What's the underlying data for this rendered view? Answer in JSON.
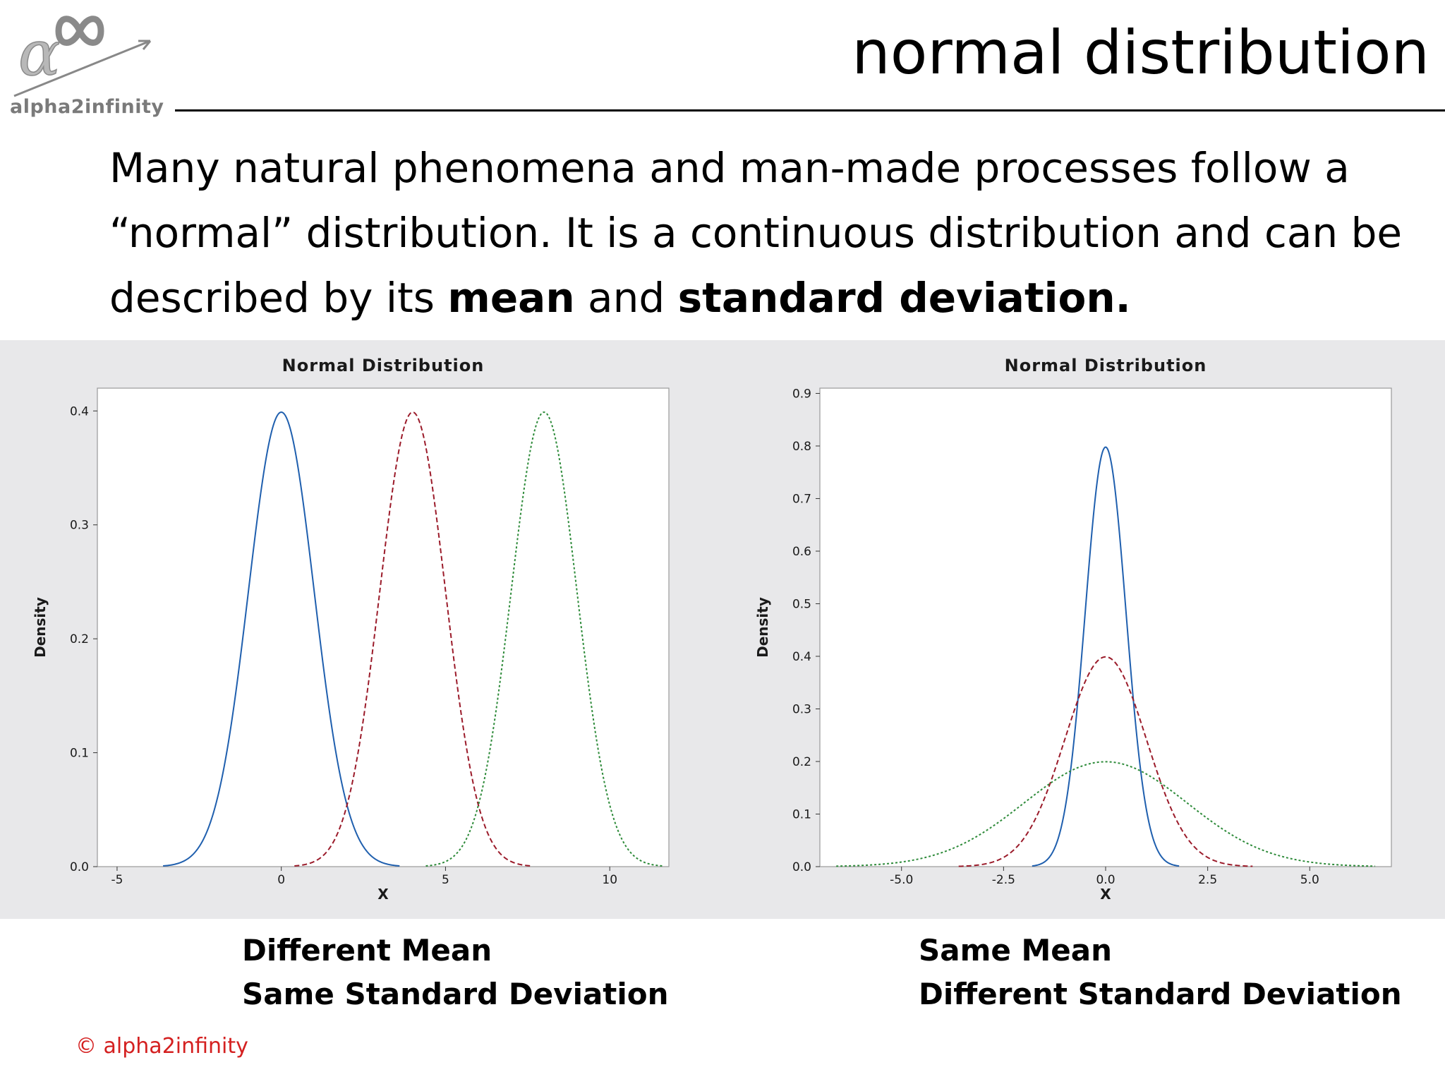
{
  "logo": {
    "text": "alpha2infinity"
  },
  "title": "normal distribution",
  "intro": {
    "part1": "Many natural phenomena and man-made processes follow a “normal” distribution. It is a continuous distribution and can be described by its ",
    "bold1": "mean",
    "part2": " and ",
    "bold2": "standard deviation."
  },
  "captions": {
    "left_line1": "Different Mean",
    "left_line2": "Same Standard Deviation",
    "right_line1": "Same Mean",
    "right_line2": "Different Standard Deviation"
  },
  "copyright": "© alpha2infinity",
  "chart_data": [
    {
      "type": "line",
      "title": "Normal Distribution",
      "xlabel": "X",
      "ylabel": "Density",
      "xlim": [
        -5.6,
        11.8
      ],
      "ylim": [
        0,
        0.42
      ],
      "xticks": [
        -5,
        0,
        5,
        10
      ],
      "xtick_labels": [
        "-5",
        "0",
        "5",
        "10"
      ],
      "yticks": [
        0.0,
        0.1,
        0.2,
        0.3,
        0.4
      ],
      "ytick_labels": [
        "0.0",
        "0.1",
        "0.2",
        "0.3",
        "0.4"
      ],
      "grid": false,
      "series": [
        {
          "mean": 0,
          "sd": 1,
          "x_range": [
            -3.6,
            3.6
          ],
          "color": "#1f5fae",
          "dash": "solid"
        },
        {
          "mean": 4,
          "sd": 1,
          "x_range": [
            0.4,
            7.6
          ],
          "color": "#9b1b2a",
          "dash": "dashed"
        },
        {
          "mean": 8,
          "sd": 1,
          "x_range": [
            4.4,
            11.6
          ],
          "color": "#2e8b3a",
          "dash": "dotted"
        }
      ]
    },
    {
      "type": "line",
      "title": "Normal Distribution",
      "xlabel": "X",
      "ylabel": "Density",
      "xlim": [
        -7.0,
        7.0
      ],
      "ylim": [
        0,
        0.91
      ],
      "xticks": [
        -5.0,
        -2.5,
        0.0,
        2.5,
        5.0
      ],
      "xtick_labels": [
        "-5.0",
        "-2.5",
        "0.0",
        "2.5",
        "5.0"
      ],
      "yticks": [
        0.0,
        0.1,
        0.2,
        0.3,
        0.4,
        0.5,
        0.6,
        0.7,
        0.8,
        0.9
      ],
      "ytick_labels": [
        "0.0",
        "0.1",
        "0.2",
        "0.3",
        "0.4",
        "0.5",
        "0.6",
        "0.7",
        "0.8",
        "0.9"
      ],
      "grid": false,
      "series": [
        {
          "mean": 0,
          "sd": 0.5,
          "x_range": [
            -1.8,
            1.8
          ],
          "color": "#1f5fae",
          "dash": "solid"
        },
        {
          "mean": 0,
          "sd": 1,
          "x_range": [
            -3.6,
            3.6
          ],
          "color": "#9b1b2a",
          "dash": "dashed"
        },
        {
          "mean": 0,
          "sd": 2,
          "x_range": [
            -6.6,
            6.6
          ],
          "color": "#2e8b3a",
          "dash": "dotted"
        }
      ]
    }
  ]
}
